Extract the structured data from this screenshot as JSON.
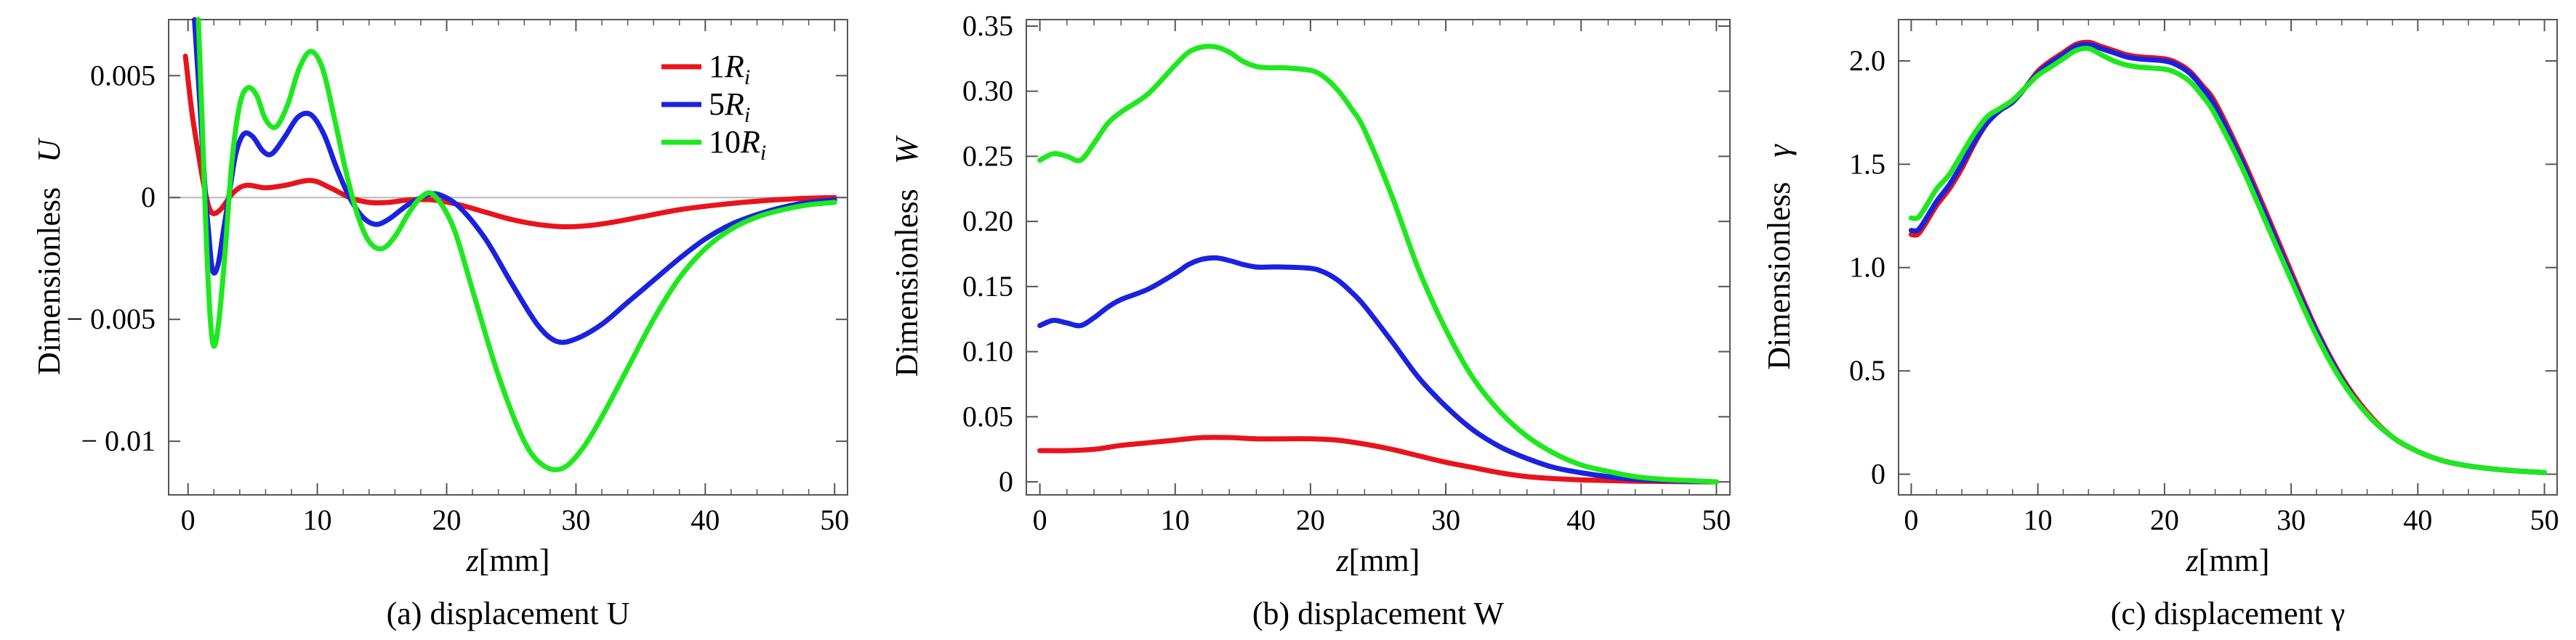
{
  "figure_title": "",
  "chart_data": [
    {
      "type": "line",
      "caption": "(a) displacement U",
      "xlabel": "z[mm]",
      "xlabel_var": "z",
      "xlabel_unit": "[mm]",
      "ylabel": "Dimensionless U",
      "ylabel_text": "Dimensionless",
      "ylabel_var": "U",
      "xlim": [
        -1.5,
        51
      ],
      "ylim": [
        -0.0122,
        0.0073
      ],
      "xticks": [
        0,
        10,
        20,
        30,
        40,
        50
      ],
      "xtick_labels": [
        "0",
        "10",
        "20",
        "30",
        "40",
        "50"
      ],
      "yticks": [
        0.005,
        0,
        -0.005,
        -0.01
      ],
      "ytick_labels": [
        "0.005",
        "0",
        "− 0.005",
        "− 0.01"
      ],
      "zero_line": true,
      "legend": {
        "position": "top-right",
        "entries": [
          {
            "coef": "1",
            "var": "R",
            "sub": "i",
            "color": "#e8141b"
          },
          {
            "coef": "5",
            "var": "R",
            "sub": "i",
            "color": "#1a22e0"
          },
          {
            "coef": "10",
            "var": "R",
            "sub": "i",
            "color": "#1ee81e"
          }
        ]
      },
      "series": [
        {
          "name": "1Ri",
          "color": "#e8141b",
          "x": [
            -0.2,
            0.3,
            0.8,
            1.3,
            1.8,
            2.5,
            3.5,
            4.5,
            6,
            7.5,
            9.5,
            11,
            12.5,
            14,
            15.5,
            17,
            19,
            21,
            23,
            25,
            27,
            29,
            31,
            33,
            35,
            38,
            41,
            44,
            47,
            50
          ],
          "y": [
            0.0058,
            0.0035,
            0.0018,
            0.0003,
            -0.0006,
            -0.0005,
            0.0002,
            0.0005,
            0.0004,
            0.0005,
            0.0007,
            0.0004,
            0.0,
            -0.0002,
            -0.0002,
            -0.0001,
            -0.0001,
            -0.0003,
            -0.0006,
            -0.0009,
            -0.0011,
            -0.0012,
            -0.00115,
            -0.001,
            -0.0008,
            -0.0005,
            -0.0003,
            -0.00015,
            -5e-05,
            0.0
          ]
        },
        {
          "name": "5Ri",
          "color": "#1a22e0",
          "x": [
            0.5,
            0.9,
            1.3,
            1.6,
            1.9,
            2.3,
            2.7,
            3.2,
            3.7,
            4.3,
            5,
            5.8,
            6.5,
            7.5,
            8.5,
            9.5,
            10.5,
            11.5,
            12.5,
            13.5,
            14.5,
            15.5,
            17,
            18.5,
            19.5,
            21,
            23,
            25,
            27,
            28.5,
            30,
            32,
            34,
            36,
            38,
            40,
            42,
            44,
            46,
            48,
            50
          ],
          "y": [
            0.0073,
            0.004,
            0.0005,
            -0.0015,
            -0.003,
            -0.0028,
            -0.0015,
            0.0002,
            0.0018,
            0.0026,
            0.0025,
            0.0019,
            0.0018,
            0.0025,
            0.0033,
            0.0034,
            0.0026,
            0.0012,
            0.0,
            -0.0008,
            -0.0011,
            -0.0009,
            -0.0003,
            0.0001,
            0.0001,
            -0.0004,
            -0.0017,
            -0.0035,
            -0.0052,
            -0.0059,
            -0.0058,
            -0.0052,
            -0.0043,
            -0.0034,
            -0.0025,
            -0.0017,
            -0.0011,
            -0.0007,
            -0.0004,
            -0.0002,
            -0.0001
          ]
        },
        {
          "name": "10Ri",
          "color": "#1ee81e",
          "x": [
            0.8,
            1.1,
            1.4,
            1.7,
            2.0,
            2.4,
            2.9,
            3.4,
            4.0,
            4.6,
            5.3,
            6.0,
            6.8,
            7.7,
            8.6,
            9.5,
            10.4,
            11.3,
            12.2,
            13.1,
            14,
            15,
            16,
            17,
            18,
            19,
            20.5,
            22,
            24,
            26,
            27.5,
            29,
            30.5,
            32,
            34,
            36,
            38,
            40,
            42,
            44,
            46,
            48,
            50
          ],
          "y": [
            0.0073,
            0.003,
            -0.0015,
            -0.0048,
            -0.0061,
            -0.005,
            -0.002,
            0.0015,
            0.0038,
            0.0045,
            0.0042,
            0.0032,
            0.0029,
            0.0038,
            0.0053,
            0.006,
            0.0053,
            0.0033,
            0.0011,
            -0.0007,
            -0.0018,
            -0.0021,
            -0.0016,
            -0.0007,
            0.0,
            0.0001,
            -0.0012,
            -0.0038,
            -0.0073,
            -0.01,
            -0.011,
            -0.0111,
            -0.0103,
            -0.009,
            -0.007,
            -0.005,
            -0.0033,
            -0.0021,
            -0.0013,
            -0.0008,
            -0.0005,
            -0.0003,
            -0.0002
          ]
        }
      ]
    },
    {
      "type": "line",
      "caption": "(b) displacement W",
      "xlabel": "z[mm]",
      "xlabel_var": "z",
      "xlabel_unit": "[mm]",
      "ylabel": "Dimensionless W",
      "ylabel_text": "Dimensionless",
      "ylabel_var": "W",
      "xlim": [
        -1,
        51
      ],
      "ylim": [
        -0.01,
        0.355
      ],
      "xticks": [
        0,
        10,
        20,
        30,
        40,
        50
      ],
      "xtick_labels": [
        "0",
        "10",
        "20",
        "30",
        "40",
        "50"
      ],
      "yticks": [
        0,
        0.05,
        0.1,
        0.15,
        0.2,
        0.25,
        0.3,
        0.35
      ],
      "ytick_labels": [
        "0",
        "0.05",
        "0.10",
        "0.15",
        "0.20",
        "0.25",
        "0.30",
        "0.35"
      ],
      "zero_line": false,
      "series": [
        {
          "name": "1Ri",
          "color": "#e8141b",
          "x": [
            0,
            2,
            4,
            6,
            8,
            10,
            12,
            14,
            16,
            18,
            20,
            22,
            24,
            26,
            28,
            30,
            32,
            34,
            36,
            38,
            40,
            42,
            44,
            46,
            48,
            50
          ],
          "y": [
            0.024,
            0.024,
            0.025,
            0.028,
            0.03,
            0.032,
            0.034,
            0.034,
            0.033,
            0.033,
            0.033,
            0.032,
            0.029,
            0.025,
            0.02,
            0.015,
            0.011,
            0.007,
            0.004,
            0.0025,
            0.0015,
            0.001,
            0.0005,
            0.0003,
            0.0001,
            0.0
          ]
        },
        {
          "name": "5Ri",
          "color": "#1a22e0",
          "x": [
            0,
            1,
            2,
            3,
            4,
            5,
            6,
            8,
            10,
            11,
            12,
            13,
            14,
            15,
            16,
            17,
            18,
            20,
            21,
            22,
            23,
            24,
            26,
            28,
            30,
            32,
            34,
            36,
            38,
            40,
            42,
            44,
            46,
            48,
            50
          ],
          "y": [
            0.12,
            0.124,
            0.122,
            0.12,
            0.126,
            0.134,
            0.14,
            0.148,
            0.16,
            0.167,
            0.171,
            0.172,
            0.17,
            0.167,
            0.165,
            0.165,
            0.165,
            0.164,
            0.161,
            0.155,
            0.146,
            0.135,
            0.108,
            0.08,
            0.058,
            0.04,
            0.027,
            0.018,
            0.011,
            0.007,
            0.004,
            0.002,
            0.0011,
            0.0005,
            0.0
          ]
        },
        {
          "name": "10Ri",
          "color": "#1ee81e",
          "x": [
            0,
            1,
            2,
            3,
            4,
            5,
            6,
            8,
            10,
            11,
            12,
            13,
            14,
            15,
            16,
            17,
            18,
            20,
            21,
            22,
            23,
            24,
            26,
            28,
            30,
            32,
            34,
            36,
            38,
            40,
            42,
            44,
            46,
            48,
            50
          ],
          "y": [
            0.247,
            0.252,
            0.25,
            0.247,
            0.26,
            0.275,
            0.284,
            0.298,
            0.32,
            0.33,
            0.334,
            0.334,
            0.33,
            0.323,
            0.319,
            0.318,
            0.318,
            0.316,
            0.311,
            0.301,
            0.287,
            0.27,
            0.22,
            0.163,
            0.117,
            0.08,
            0.054,
            0.035,
            0.022,
            0.013,
            0.008,
            0.004,
            0.002,
            0.001,
            0.0
          ]
        }
      ]
    },
    {
      "type": "line",
      "caption": "(c) displacement γ",
      "xlabel": "z[mm]",
      "xlabel_var": "z",
      "xlabel_unit": "[mm]",
      "ylabel": "Dimensionless γ",
      "ylabel_text": "Dimensionless",
      "ylabel_var": "γ",
      "xlim": [
        -1,
        51
      ],
      "ylim": [
        -0.1,
        2.2
      ],
      "xticks": [
        0,
        10,
        20,
        30,
        40,
        50
      ],
      "xtick_labels": [
        "0",
        "10",
        "20",
        "30",
        "40",
        "50"
      ],
      "yticks": [
        0,
        0.5,
        1.0,
        1.5,
        2.0
      ],
      "ytick_labels": [
        "0",
        "0.5",
        "1.0",
        "1.5",
        "2.0"
      ],
      "zero_line": false,
      "series": [
        {
          "name": "1Ri",
          "color": "#e8141b",
          "x": [
            0,
            0.5,
            1,
            2,
            3,
            4,
            5,
            6,
            7,
            8,
            9,
            10,
            11,
            12,
            13,
            14,
            15,
            16,
            17,
            18,
            20,
            21,
            22,
            23,
            24,
            26,
            28,
            30,
            32,
            34,
            36,
            38,
            40,
            42,
            44,
            46,
            48,
            50
          ],
          "y": [
            1.16,
            1.16,
            1.2,
            1.3,
            1.38,
            1.48,
            1.6,
            1.7,
            1.76,
            1.8,
            1.87,
            1.95,
            2.0,
            2.04,
            2.08,
            2.09,
            2.07,
            2.05,
            2.03,
            2.02,
            2.01,
            1.99,
            1.95,
            1.88,
            1.8,
            1.55,
            1.27,
            0.98,
            0.7,
            0.47,
            0.3,
            0.18,
            0.11,
            0.065,
            0.04,
            0.025,
            0.015,
            0.008
          ]
        },
        {
          "name": "5Ri",
          "color": "#1a22e0",
          "x": [
            0,
            0.5,
            1,
            2,
            3,
            4,
            5,
            6,
            7,
            8,
            9,
            10,
            11,
            12,
            13,
            14,
            15,
            16,
            17,
            18,
            20,
            21,
            22,
            23,
            24,
            26,
            28,
            30,
            32,
            34,
            36,
            38,
            40,
            42,
            44,
            46,
            48,
            50
          ],
          "y": [
            1.18,
            1.18,
            1.22,
            1.32,
            1.4,
            1.5,
            1.61,
            1.7,
            1.76,
            1.8,
            1.87,
            1.94,
            1.99,
            2.03,
            2.07,
            2.08,
            2.06,
            2.04,
            2.02,
            2.01,
            2.0,
            1.98,
            1.94,
            1.87,
            1.78,
            1.53,
            1.25,
            0.96,
            0.69,
            0.46,
            0.29,
            0.18,
            0.11,
            0.065,
            0.04,
            0.025,
            0.015,
            0.008
          ]
        },
        {
          "name": "10Ri",
          "color": "#1ee81e",
          "x": [
            0,
            0.5,
            1,
            2,
            3,
            4,
            5,
            6,
            7,
            8,
            9,
            10,
            11,
            12,
            13,
            14,
            15,
            16,
            17,
            18,
            20,
            21,
            22,
            23,
            24,
            26,
            28,
            30,
            32,
            34,
            36,
            38,
            40,
            42,
            44,
            46,
            48,
            50
          ],
          "y": [
            1.24,
            1.24,
            1.28,
            1.38,
            1.45,
            1.55,
            1.65,
            1.73,
            1.77,
            1.81,
            1.87,
            1.93,
            1.97,
            2.01,
            2.05,
            2.06,
            2.03,
            2.0,
            1.98,
            1.97,
            1.96,
            1.94,
            1.9,
            1.83,
            1.74,
            1.5,
            1.22,
            0.94,
            0.67,
            0.45,
            0.29,
            0.18,
            0.11,
            0.065,
            0.04,
            0.025,
            0.015,
            0.008
          ]
        }
      ]
    }
  ]
}
